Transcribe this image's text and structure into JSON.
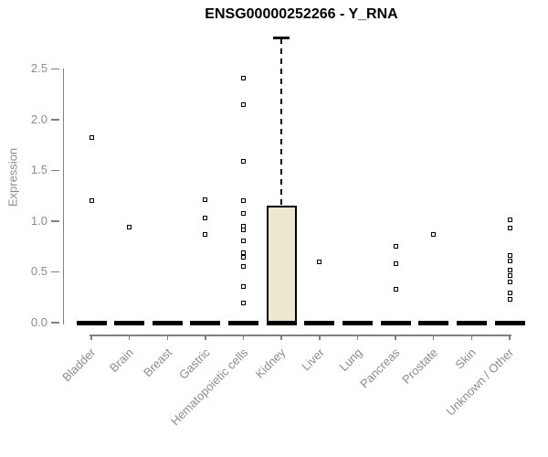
{
  "chart_data": {
    "type": "boxplot",
    "title": "ENSG00000252266 - Y_RNA",
    "ylabel": "Expression",
    "xlabel": "",
    "ylim": [
      0,
      2.85
    ],
    "ytick_labels": [
      "0.0",
      "0.5",
      "1.0",
      "1.5",
      "2.0",
      "2.5"
    ],
    "grid": false,
    "legend": false,
    "colors": {
      "box_fill": "#ece7ce",
      "box_border": "#000000",
      "axis": "#808080",
      "tick_label": "#8c8c8c",
      "title": "#000000",
      "point": "#000000"
    },
    "boxes": [
      {
        "category": "Bladder",
        "median": 0,
        "q1": 0,
        "q3": 0,
        "whisker_low": 0,
        "whisker_high": 0,
        "outliers": [
          1.82,
          1.2
        ]
      },
      {
        "category": "Brain",
        "median": 0,
        "q1": 0,
        "q3": 0,
        "whisker_low": 0,
        "whisker_high": 0,
        "outliers": [
          0.94
        ]
      },
      {
        "category": "Breast",
        "median": 0,
        "q1": 0,
        "q3": 0,
        "whisker_low": 0,
        "whisker_high": 0,
        "outliers": []
      },
      {
        "category": "Gastric",
        "median": 0,
        "q1": 0,
        "q3": 0,
        "whisker_low": 0,
        "whisker_high": 0,
        "outliers": [
          1.21,
          1.03,
          0.87
        ]
      },
      {
        "category": "Hematopoietic cells",
        "median": 0,
        "q1": 0,
        "q3": 0,
        "whisker_low": 0,
        "whisker_high": 0,
        "outliers": [
          2.41,
          2.15,
          1.59,
          1.2,
          1.08,
          0.95,
          0.91,
          0.81,
          0.69,
          0.64,
          0.55,
          0.36,
          0.19
        ]
      },
      {
        "category": "Kidney",
        "median": 0,
        "q1": 0,
        "q3": 1.15,
        "whisker_low": 0,
        "whisker_high": 2.8,
        "outliers": []
      },
      {
        "category": "Liver",
        "median": 0,
        "q1": 0,
        "q3": 0,
        "whisker_low": 0,
        "whisker_high": 0,
        "outliers": [
          0.6
        ]
      },
      {
        "category": "Lung",
        "median": 0,
        "q1": 0,
        "q3": 0,
        "whisker_low": 0,
        "whisker_high": 0,
        "outliers": []
      },
      {
        "category": "Pancreas",
        "median": 0,
        "q1": 0,
        "q3": 0,
        "whisker_low": 0,
        "whisker_high": 0,
        "outliers": [
          0.75,
          0.58,
          0.33
        ]
      },
      {
        "category": "Prostate",
        "median": 0,
        "q1": 0,
        "q3": 0,
        "whisker_low": 0,
        "whisker_high": 0,
        "outliers": [
          0.87
        ]
      },
      {
        "category": "Skin",
        "median": 0,
        "q1": 0,
        "q3": 0,
        "whisker_low": 0,
        "whisker_high": 0,
        "outliers": []
      },
      {
        "category": "Unknown / Other",
        "median": 0,
        "q1": 0,
        "q3": 0,
        "whisker_low": 0,
        "whisker_high": 0,
        "outliers": [
          1.01,
          0.93,
          0.66,
          0.61,
          0.52,
          0.46,
          0.4,
          0.29,
          0.23
        ]
      }
    ]
  }
}
